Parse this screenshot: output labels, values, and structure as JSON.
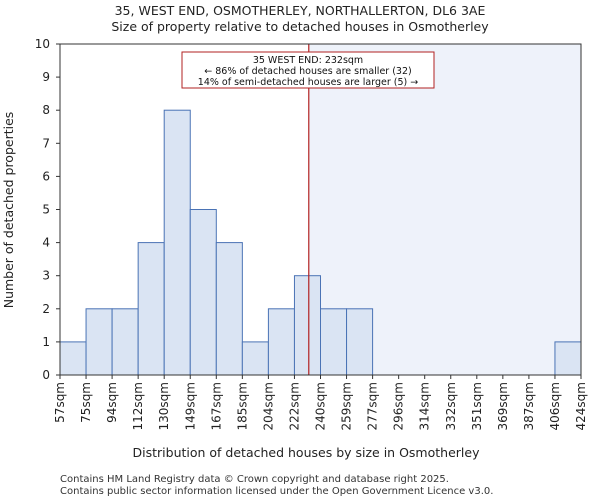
{
  "chart_data": {
    "type": "bar",
    "title": "35, WEST END, OSMOTHERLEY, NORTHALLERTON, DL6 3AE",
    "subtitle": "Size of property relative to detached houses in Osmotherley",
    "xlabel": "Distribution of detached houses by size in Osmotherley",
    "ylabel": "Number of detached properties",
    "ylim": [
      0,
      10
    ],
    "yticks": [
      "0",
      "1",
      "2",
      "3",
      "4",
      "5",
      "6",
      "7",
      "8",
      "9",
      "10"
    ],
    "bin_edges": [
      "57sqm",
      "75sqm",
      "94sqm",
      "112sqm",
      "130sqm",
      "149sqm",
      "167sqm",
      "185sqm",
      "204sqm",
      "222sqm",
      "240sqm",
      "259sqm",
      "277sqm",
      "296sqm",
      "314sqm",
      "332sqm",
      "351sqm",
      "369sqm",
      "387sqm",
      "406sqm",
      "424sqm"
    ],
    "values": [
      1,
      2,
      2,
      4,
      8,
      5,
      4,
      1,
      2,
      3,
      2,
      2,
      0,
      0,
      0,
      0,
      0,
      0,
      0,
      1
    ],
    "marker_bin_position": 9.55,
    "annotation": {
      "line1": "35 WEST END: 232sqm",
      "line2": "← 86% of detached houses are smaller (32)",
      "line3": "14% of semi-detached houses are larger (5) →"
    },
    "colors": {
      "bar_fill": "#dae4f3",
      "bar_edge": "#4a73b5",
      "marker": "#b22222",
      "shade": "#eef2fa"
    }
  },
  "footer": {
    "line1": "Contains HM Land Registry data © Crown copyright and database right 2025.",
    "line2": "Contains public sector information licensed under the Open Government Licence v3.0."
  }
}
